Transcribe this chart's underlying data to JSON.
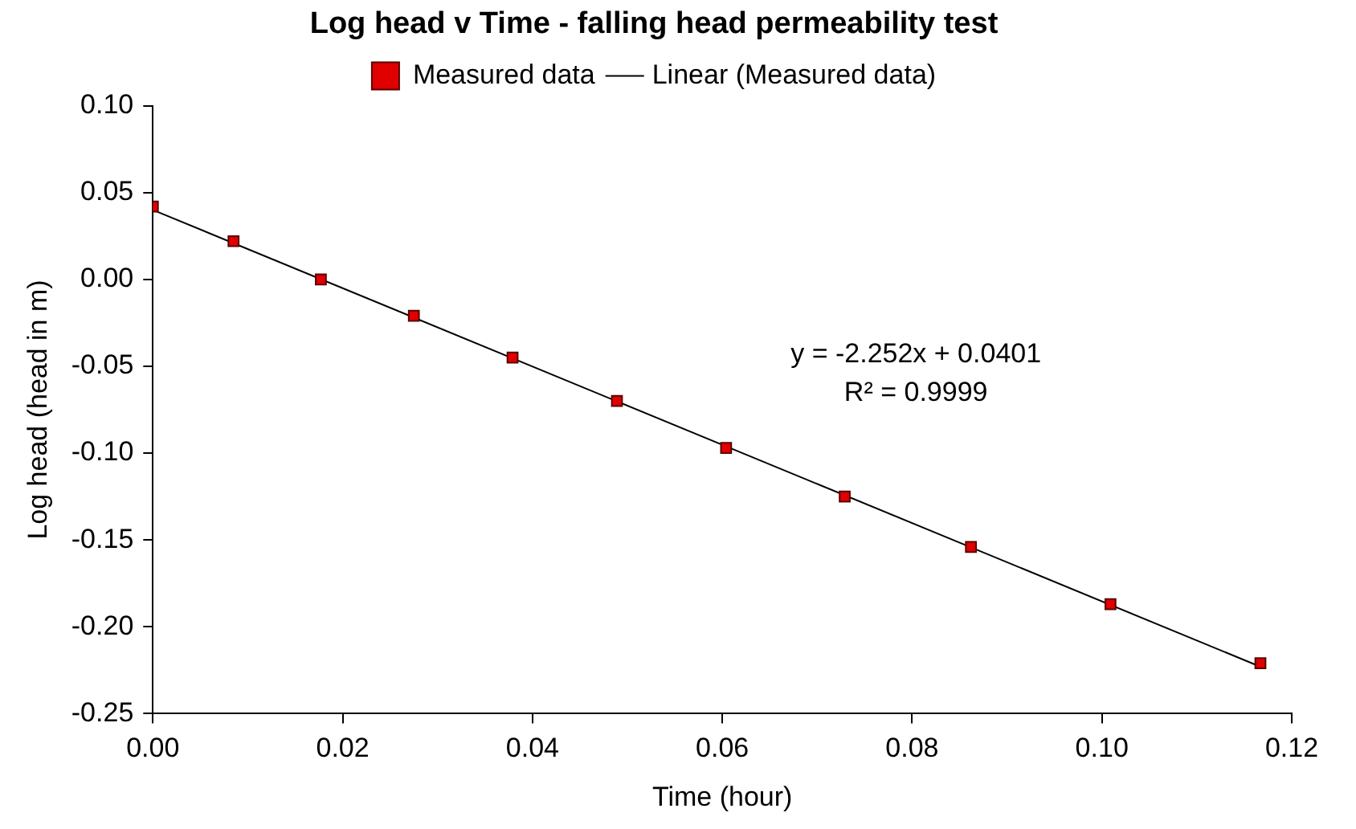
{
  "chart_data": {
    "type": "scatter",
    "title": "Log head v Time - falling head permeability test",
    "xlabel": "Time (hour)",
    "ylabel": "Log head (head in m)",
    "series": [
      {
        "name": "Measured data",
        "color": "#e00000",
        "marker": "square",
        "x": [
          0,
          0.0085,
          0.0177,
          0.0275,
          0.0379,
          0.0489,
          0.0604,
          0.0729,
          0.0862,
          0.1009,
          0.1167
        ],
        "values": [
          0.042,
          0.022,
          0.0,
          -0.021,
          -0.045,
          -0.07,
          -0.097,
          -0.125,
          -0.154,
          -0.187,
          -0.221
        ]
      },
      {
        "name": "Linear (Measured data)",
        "type": "line",
        "color": "#000000",
        "marker": "none",
        "line_style": "solid",
        "x": [
          0,
          0.1167
        ],
        "values": [
          0.04,
          -0.223
        ]
      }
    ],
    "xlim": [
      0,
      0.12
    ],
    "xticks": [
      {
        "value": 0,
        "label": "0.00"
      },
      {
        "value": 0.02,
        "label": "0.02"
      },
      {
        "value": 0.04,
        "label": "0.04"
      },
      {
        "value": 0.06,
        "label": "0.06"
      },
      {
        "value": 0.08,
        "label": "0.08"
      },
      {
        "value": 0.1,
        "label": "0.10"
      },
      {
        "value": 0.12,
        "label": "0.12"
      }
    ],
    "ylim": [
      -0.25,
      0.1
    ],
    "yticks": [
      {
        "value": -0.25,
        "label": "-0.25"
      },
      {
        "value": -0.2,
        "label": "-0.20"
      },
      {
        "value": -0.15,
        "label": "-0.15"
      },
      {
        "value": -0.1,
        "label": "-0.10"
      },
      {
        "value": -0.05,
        "label": "-0.05"
      },
      {
        "value": 0,
        "label": "0.00"
      },
      {
        "value": 0.05,
        "label": "0.05"
      },
      {
        "value": 0.1,
        "label": "0.10"
      }
    ],
    "annotations": [
      "y = -2.252x + 0.0401",
      "R² = 0.9999"
    ],
    "grid": false,
    "legend": "top"
  }
}
